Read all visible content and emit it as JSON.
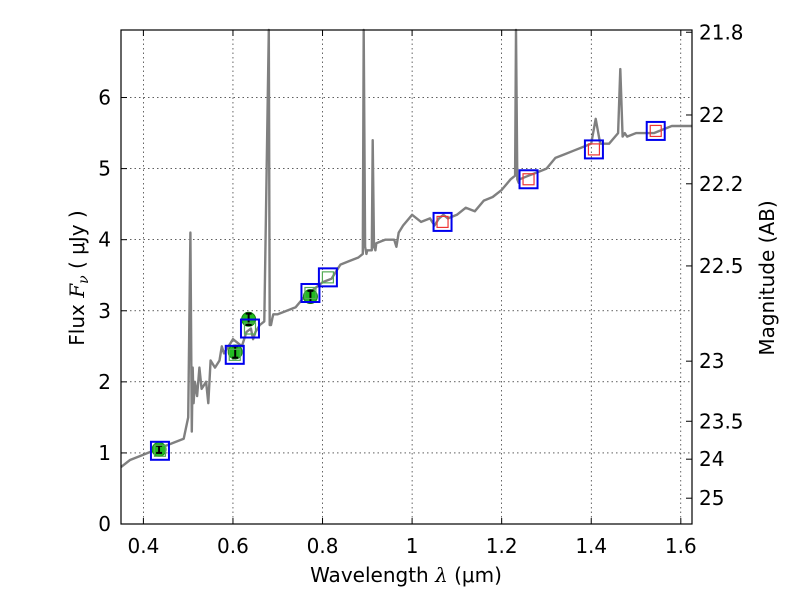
{
  "chart_data": {
    "type": "line",
    "x_label": {
      "prefix": "Wavelength  ",
      "symbol": "λ",
      "units": " (μm)"
    },
    "y_label": {
      "prefix": "Flux  ",
      "symbol": "F",
      "subscript": "ν",
      "units": "  ( μJy )"
    },
    "y2_label": "Magnitude (AB)",
    "xlim": [
      0.35,
      1.625
    ],
    "ylim": [
      0,
      6.95
    ],
    "x_ticks": [
      0.4,
      0.6,
      0.8,
      1.0,
      1.2,
      1.4,
      1.6
    ],
    "x_tick_labels": [
      "0.4",
      "0.6",
      "0.8",
      "1",
      "1.2",
      "1.4",
      "1.6"
    ],
    "y_ticks": [
      0,
      1,
      2,
      3,
      4,
      5,
      6
    ],
    "y_tick_labels": [
      "0",
      "1",
      "2",
      "3",
      "4",
      "5",
      "6"
    ],
    "y2_ticks": [
      {
        "label": "21.8",
        "mag": 21.8
      },
      {
        "label": "22",
        "mag": 22.0
      },
      {
        "label": "22.2",
        "mag": 22.2
      },
      {
        "label": "22.5",
        "mag": 22.5
      },
      {
        "label": "23",
        "mag": 23.0
      },
      {
        "label": "23.5",
        "mag": 23.5
      },
      {
        "label": "24",
        "mag": 24.0
      },
      {
        "label": "25",
        "mag": 25.0
      }
    ],
    "grid": true,
    "colors": {
      "model": "#808080",
      "observed_fill": "#22bb22",
      "model_box": "#0000ee",
      "model_box_inner": "#ee3333",
      "model_box_inner_green": "#55aa55"
    },
    "model_spectrum": {
      "name": "",
      "x": [
        0.35,
        0.37,
        0.39,
        0.41,
        0.43,
        0.45,
        0.47,
        0.49,
        0.5,
        0.505,
        0.508,
        0.51,
        0.512,
        0.515,
        0.52,
        0.525,
        0.53,
        0.54,
        0.545,
        0.55,
        0.56,
        0.57,
        0.575,
        0.58,
        0.59,
        0.6,
        0.61,
        0.62,
        0.63,
        0.64,
        0.645,
        0.65,
        0.66,
        0.67,
        0.68,
        0.682,
        0.685,
        0.688,
        0.69,
        0.7,
        0.72,
        0.74,
        0.76,
        0.78,
        0.8,
        0.82,
        0.84,
        0.86,
        0.88,
        0.89,
        0.892,
        0.895,
        0.898,
        0.9,
        0.91,
        0.912,
        0.915,
        0.918,
        0.92,
        0.94,
        0.96,
        0.965,
        0.97,
        0.98,
        1.0,
        1.02,
        1.04,
        1.05,
        1.06,
        1.07,
        1.08,
        1.1,
        1.12,
        1.14,
        1.16,
        1.18,
        1.2,
        1.22,
        1.23,
        1.232,
        1.235,
        1.238,
        1.24,
        1.26,
        1.28,
        1.3,
        1.32,
        1.34,
        1.36,
        1.38,
        1.4,
        1.41,
        1.42,
        1.44,
        1.46,
        1.465,
        1.47,
        1.475,
        1.48,
        1.5,
        1.52,
        1.54,
        1.56,
        1.58,
        1.6,
        1.625
      ],
      "y": [
        0.8,
        0.9,
        0.95,
        1.0,
        1.05,
        1.1,
        1.15,
        1.2,
        1.5,
        4.1,
        1.3,
        2.2,
        1.7,
        2.0,
        1.8,
        2.2,
        1.9,
        2.0,
        1.7,
        2.3,
        2.2,
        2.3,
        2.5,
        2.4,
        2.5,
        2.6,
        2.55,
        2.5,
        2.7,
        2.75,
        2.6,
        2.7,
        2.8,
        2.85,
        6.95,
        2.8,
        2.8,
        2.9,
        2.95,
        2.95,
        3.0,
        3.05,
        3.2,
        3.3,
        3.4,
        3.45,
        3.65,
        3.7,
        3.75,
        3.8,
        6.95,
        3.9,
        3.8,
        3.85,
        3.85,
        5.4,
        3.9,
        3.85,
        3.95,
        4.0,
        4.0,
        3.9,
        4.1,
        4.2,
        4.35,
        4.25,
        4.3,
        4.2,
        4.3,
        4.35,
        4.3,
        4.35,
        4.45,
        4.4,
        4.55,
        4.6,
        4.7,
        4.85,
        4.9,
        6.95,
        4.85,
        4.8,
        4.85,
        4.9,
        4.95,
        5.0,
        5.15,
        5.2,
        5.25,
        5.3,
        5.35,
        5.7,
        5.35,
        5.35,
        5.5,
        6.4,
        5.45,
        5.5,
        5.45,
        5.5,
        5.5,
        5.5,
        5.55,
        5.6,
        5.6,
        5.6
      ]
    },
    "observed_points": {
      "name": "",
      "x": [
        0.435,
        0.605,
        0.635,
        0.773
      ],
      "y": [
        1.05,
        2.42,
        2.88,
        3.2
      ],
      "yerr": [
        0.05,
        0.08,
        0.08,
        0.08
      ]
    },
    "model_photometry": {
      "name": "",
      "x": [
        0.437,
        0.604,
        0.638,
        0.773,
        0.812,
        1.068,
        1.26,
        1.406,
        1.544
      ],
      "y": [
        1.03,
        2.38,
        2.75,
        3.25,
        3.47,
        4.25,
        4.85,
        5.27,
        5.53
      ],
      "inner_color": [
        "green",
        "green",
        "green",
        "green",
        "green",
        "red",
        "red",
        "red",
        "red"
      ]
    }
  }
}
